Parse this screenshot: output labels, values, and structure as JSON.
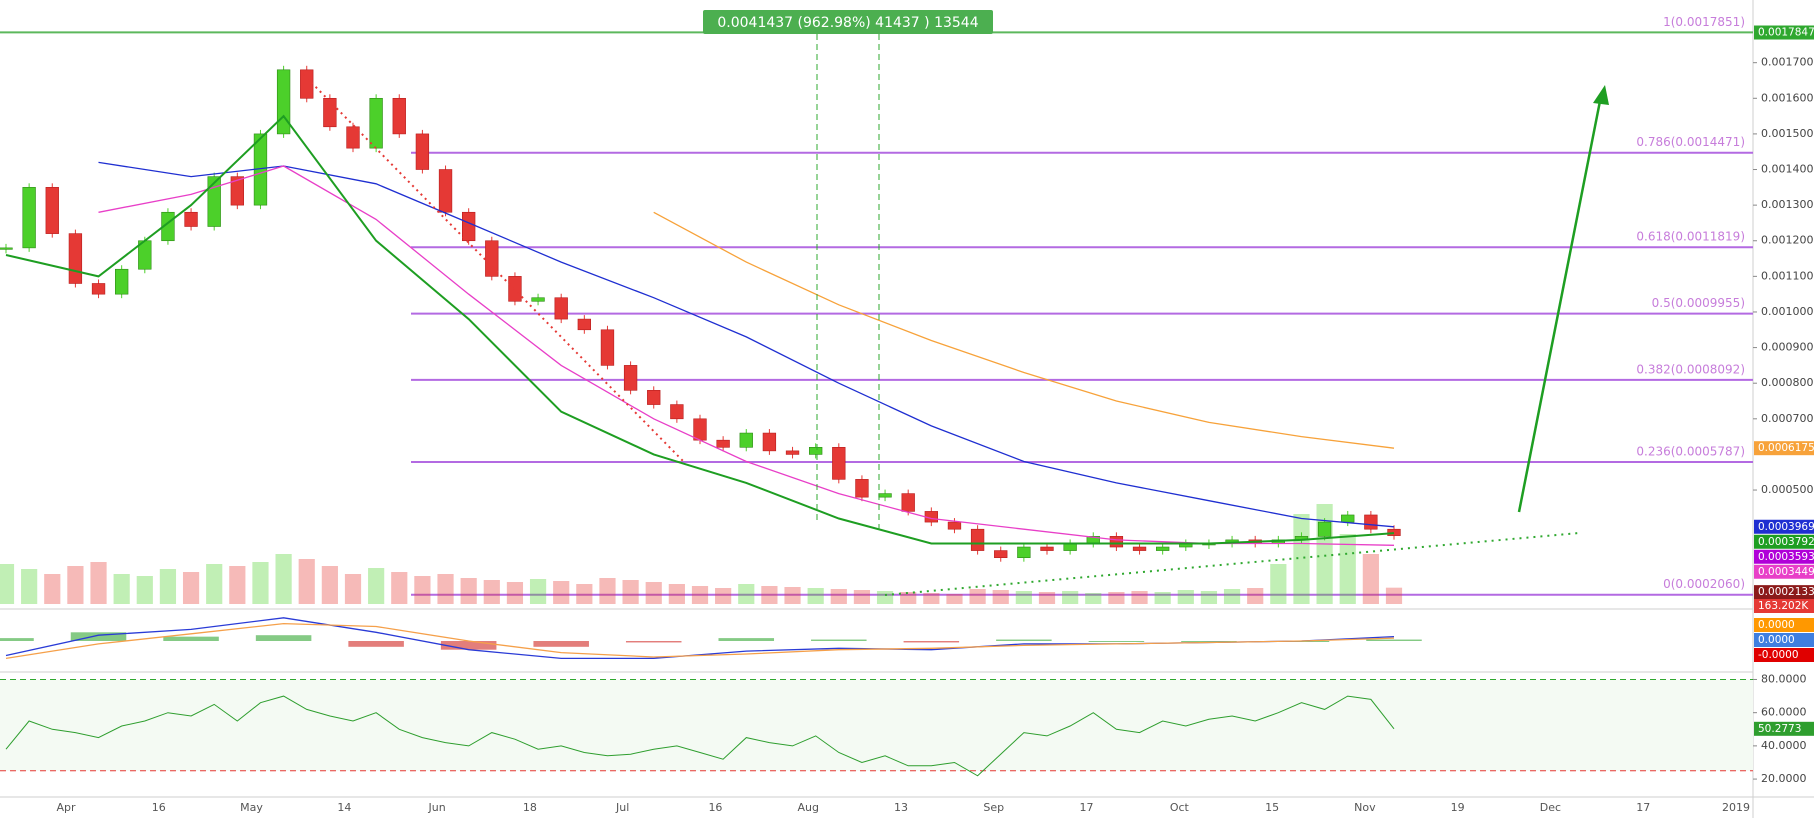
{
  "chart_data": {
    "type": "candlestick",
    "annotation": "0.0041437 (962.98%) 41437 ) 13544",
    "categories": [
      "Apr",
      "16",
      "May",
      "14",
      "Jun",
      "18",
      "Jul",
      "16",
      "Aug",
      "13",
      "Sep",
      "17",
      "Oct",
      "15",
      "Nov",
      "19",
      "Dec",
      "17",
      "2019"
    ],
    "ylim": [
      0.00018,
      0.001876
    ],
    "yticks": [
      {
        "value": 0.0005,
        "label": "0.0005000"
      },
      {
        "value": 0.0007,
        "label": "0.0007000"
      },
      {
        "value": 0.0008,
        "label": "0.0008000"
      },
      {
        "value": 0.0009,
        "label": "0.0009000"
      },
      {
        "value": 0.001,
        "label": "0.0010000"
      },
      {
        "value": 0.0011,
        "label": "0.0011000"
      },
      {
        "value": 0.0012,
        "label": "0.0012000"
      },
      {
        "value": 0.0013,
        "label": "0.0013000"
      },
      {
        "value": 0.0014,
        "label": "0.0014000"
      },
      {
        "value": 0.0015,
        "label": "0.0015000"
      },
      {
        "value": 0.0016,
        "label": "0.0016000"
      },
      {
        "value": 0.0017,
        "label": "0.0017000"
      }
    ],
    "up_color": "#4cd02a",
    "down_color": "#e53935",
    "closes": [
      0.00118,
      0.00135,
      0.00122,
      0.00108,
      0.00105,
      0.00112,
      0.0012,
      0.00128,
      0.00124,
      0.00138,
      0.0013,
      0.0015,
      0.00168,
      0.0016,
      0.00152,
      0.00146,
      0.0016,
      0.0015,
      0.0014,
      0.00128,
      0.0012,
      0.0011,
      0.00103,
      0.00104,
      0.00098,
      0.00095,
      0.00085,
      0.00078,
      0.00074,
      0.0007,
      0.00064,
      0.00062,
      0.00066,
      0.00061,
      0.0006,
      0.00062,
      0.00053,
      0.00048,
      0.00049,
      0.00044,
      0.00041,
      0.00039,
      0.00033,
      0.00031,
      0.00034,
      0.00033,
      0.00035,
      0.00037,
      0.00034,
      0.00033,
      0.00034,
      0.00035,
      0.00035,
      0.00036,
      0.00035,
      0.00036,
      0.00037,
      0.00041,
      0.00043,
      0.00039,
      0.000372
    ],
    "moving_averages": [
      {
        "color": "#1f2fd1",
        "values": [
          null,
          0.00142,
          0.00138,
          0.00141,
          0.00136,
          0.00125,
          0.00114,
          0.00104,
          0.00093,
          0.0008,
          0.00068,
          0.00058,
          0.00052,
          0.00047,
          0.00042,
          0.0003969
        ]
      },
      {
        "color": "#e83fc8",
        "values": [
          null,
          0.00128,
          0.00133,
          0.00141,
          0.00126,
          0.00105,
          0.00085,
          0.0007,
          0.00058,
          0.00049,
          0.00042,
          0.00039,
          0.00036,
          0.00035,
          0.00035,
          0.0003449
        ]
      },
      {
        "color": "#1e9e22",
        "values": [
          0.00116,
          0.0011,
          0.0013,
          0.00155,
          0.0012,
          0.00098,
          0.00072,
          0.0006,
          0.00052,
          0.00042,
          0.00035,
          0.00035,
          0.00035,
          0.00035,
          0.00036,
          0.0003792
        ]
      },
      {
        "color": "#f7a23a",
        "values": [
          null,
          null,
          null,
          null,
          null,
          null,
          null,
          0.00128,
          0.00114,
          0.00102,
          0.00092,
          0.00083,
          0.00075,
          0.00069,
          0.00065,
          0.0006175
        ]
      }
    ],
    "fib_color": "#b36ae2",
    "fib_top_color": "#5cb85c",
    "fib_levels": [
      {
        "value": 0.0017851,
        "label": "1(0.0017851)"
      },
      {
        "value": 0.0014471,
        "label": "0.786(0.0014471)"
      },
      {
        "value": 0.0011819,
        "label": "0.618(0.0011819)"
      },
      {
        "value": 0.0009955,
        "label": "0.5(0.0009955)"
      },
      {
        "value": 0.0008092,
        "label": "0.382(0.0008092)"
      },
      {
        "value": 0.0005787,
        "label": "0.236(0.0005787)"
      },
      {
        "value": 0.000206,
        "label": "0(0.0002060)"
      }
    ],
    "price_badges": [
      {
        "value": 0.0017847,
        "color": "#2fa82f"
      },
      {
        "value": 0.0003593,
        "color": "#b000d8"
      },
      {
        "value": 0.0002133,
        "color": "#8b1a1a"
      }
    ],
    "volume": {
      "values": [
        400,
        350,
        300,
        380,
        420,
        300,
        280,
        350,
        320,
        400,
        380,
        420,
        500,
        450,
        380,
        300,
        360,
        320,
        280,
        300,
        260,
        240,
        220,
        250,
        230,
        200,
        260,
        240,
        220,
        200,
        180,
        160,
        200,
        180,
        170,
        160,
        150,
        140,
        130,
        120,
        110,
        100,
        150,
        140,
        130,
        120,
        130,
        110,
        120,
        130,
        120,
        140,
        130,
        150,
        160,
        400,
        900,
        1000,
        700,
        500,
        163.202
      ],
      "last_label": "163.202K",
      "badge_color": "#e53935"
    },
    "macd": {
      "ylim": [
        -0.0002,
        0.0002
      ],
      "macd": [
        -0.0001,
        4e-05,
        8e-05,
        0.00016,
        6e-05,
        -6e-05,
        -0.00012,
        -0.00012,
        -7e-05,
        -5e-05,
        -6e-05,
        -2e-05,
        -2e-05,
        -1e-05,
        0,
        3e-05
      ],
      "signal": [
        -0.00012,
        -2e-05,
        5e-05,
        0.00012,
        0.0001,
        0,
        -8e-05,
        -0.00011,
        -9e-05,
        -6e-05,
        -5e-05,
        -3e-05,
        -2e-05,
        -1e-05,
        0,
        2e-05
      ],
      "histogram": [
        2e-05,
        6e-05,
        3e-05,
        4e-05,
        -4e-05,
        -6e-05,
        -4e-05,
        -1e-05,
        2e-05,
        1e-05,
        -1e-05,
        1e-05,
        0,
        0,
        0,
        1e-05
      ],
      "macd_color": "#2a3bd6",
      "signal_color": "#f5a04a",
      "badges": [
        {
          "label": "0.0000",
          "color": "#ff9800"
        },
        {
          "label": "0.0000",
          "color": "#3f7fe0"
        },
        {
          "label": "-0.0000",
          "color": "#e00000"
        }
      ]
    },
    "rsi": {
      "ylim": [
        9.2,
        84.5
      ],
      "yticks": [
        {
          "value": 80,
          "label": "80.0000"
        },
        {
          "value": 60,
          "label": "60.0000"
        },
        {
          "value": 40,
          "label": "40.0000"
        },
        {
          "value": 20,
          "label": "20.0000"
        }
      ],
      "bands": [
        80,
        25
      ],
      "color": "#2e9e2e",
      "values": [
        38,
        55,
        50,
        48,
        45,
        52,
        55,
        60,
        58,
        65,
        55,
        66,
        70,
        62,
        58,
        55,
        60,
        50,
        45,
        42,
        40,
        48,
        44,
        38,
        40,
        36,
        34,
        35,
        38,
        40,
        36,
        32,
        45,
        42,
        40,
        46,
        36,
        30,
        34,
        28,
        28,
        30,
        22,
        35,
        48,
        46,
        52,
        60,
        50,
        48,
        55,
        52,
        56,
        58,
        55,
        60,
        66,
        62,
        70,
        68,
        50.2773
      ]
    }
  }
}
